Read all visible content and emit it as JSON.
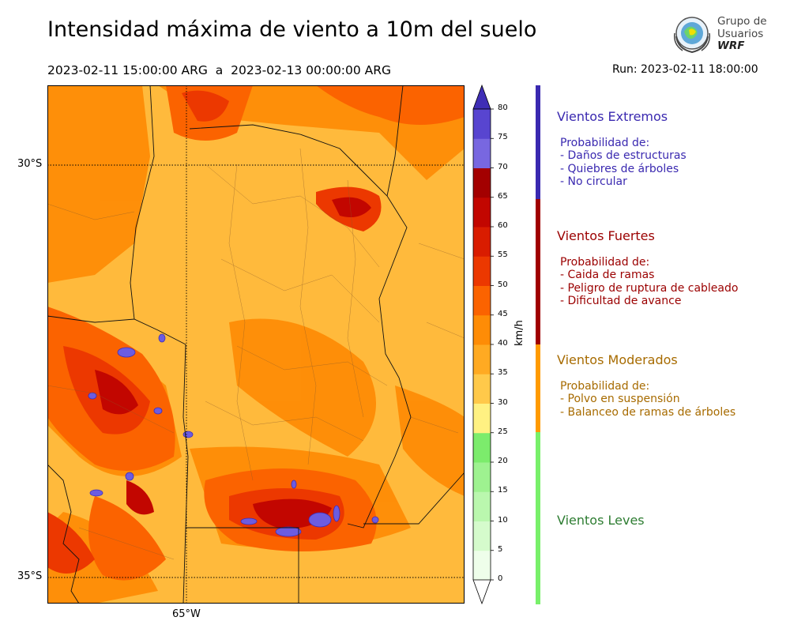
{
  "title": "Intensidad máxima de viento a 10m del suelo",
  "period": "2023-02-11 15:00:00 ARG  a  2023-02-13 00:00:00 ARG",
  "run": "Run: 2023-02-11 18:00:00",
  "logo": {
    "line1": "Grupo de",
    "line2": "Usuarios",
    "line3": "WRF",
    "icon": "globe-emblem-icon"
  },
  "map": {
    "lat_labels": [
      "30°S",
      "35°S"
    ],
    "lon_labels": [
      "65°W"
    ]
  },
  "colorbar": {
    "unit": "km/h",
    "ticks": [
      "0",
      "5",
      "10",
      "15",
      "20",
      "25",
      "30",
      "35",
      "40",
      "45",
      "50",
      "55",
      "60",
      "65",
      "70",
      "75",
      "80"
    ],
    "colors": [
      "#eefeea",
      "#d5fbcc",
      "#baf7ae",
      "#9ef290",
      "#7cec6c",
      "#fff182",
      "#ffc94a",
      "#ffaa22",
      "#fe8c06",
      "#fb6300",
      "#ec3800",
      "#d91c00",
      "#c20600",
      "#a30000",
      "#7867e0",
      "#5845d0",
      "#3f2eb6"
    ],
    "extend_low_color": "#ffffff",
    "extend_high_color": "#3f2eb6"
  },
  "categories": [
    {
      "title": "Vientos Extremos",
      "color": "#3a29b0",
      "lines": [
        "Probabilidad de:",
        "- Daños de estructuras",
        "- Quiebres de árboles",
        "- No circular"
      ]
    },
    {
      "title": "Vientos Fuertes",
      "color": "#9b0000",
      "lines": [
        "Probabilidad de:",
        "- Caida de ramas",
        "- Peligro de ruptura de cableado",
        "- Dificultad de avance"
      ]
    },
    {
      "title": "Vientos Moderados",
      "color": "#a76b00",
      "lines": [
        "Probabilidad de:",
        "- Polvo en suspensión",
        "- Balanceo de ramas de árboles"
      ]
    },
    {
      "title": "Vientos Leves",
      "color": "#2e7d32",
      "lines": []
    }
  ],
  "legend_bar_colors": [
    "#3a29b0",
    "#a00000",
    "#ff9b00",
    "#78f06a"
  ]
}
